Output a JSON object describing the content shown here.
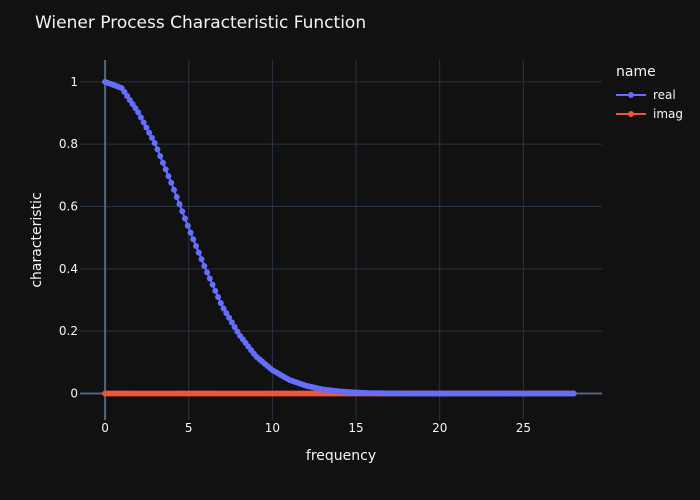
{
  "chart_data": {
    "type": "line",
    "title": "Wiener Process Characteristic Function",
    "xlabel": "frequency",
    "ylabel": "characteristic",
    "legend_title": "name",
    "legend_position": "top-right",
    "grid": true,
    "xlim": [
      -1.5,
      29.7
    ],
    "ylim": [
      -0.085,
      1.07
    ],
    "xticks": [
      0,
      5,
      10,
      15,
      20,
      25
    ],
    "yticks": [
      0,
      0.2,
      0.4,
      0.6,
      0.8,
      1
    ],
    "ytick_labels": [
      "0",
      "0.2",
      "0.4",
      "0.6",
      "0.8",
      "1"
    ],
    "xtick_labels": [
      "0",
      "5",
      "10",
      "15",
      "20",
      "25"
    ],
    "x_range": [
      0,
      28
    ],
    "series": [
      {
        "name": "real",
        "color": "#636efa",
        "x": [
          0,
          1,
          2,
          3,
          4,
          5,
          6,
          7,
          8,
          9,
          10,
          11,
          12,
          13,
          14,
          15,
          16,
          17,
          18,
          19,
          20,
          21,
          22,
          23,
          24,
          25,
          26,
          27,
          28
        ],
        "values": [
          1.0,
          0.98,
          0.9,
          0.8,
          0.67,
          0.53,
          0.4,
          0.28,
          0.19,
          0.12,
          0.075,
          0.044,
          0.025,
          0.013,
          0.007,
          0.003,
          0.001,
          0.0005,
          0.0002,
          0,
          0,
          0,
          0,
          0,
          0,
          0,
          0,
          0,
          0
        ]
      },
      {
        "name": "imag",
        "color": "#ef553b",
        "x": [
          0,
          28
        ],
        "values": [
          0,
          0
        ]
      }
    ]
  }
}
